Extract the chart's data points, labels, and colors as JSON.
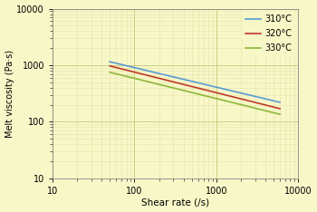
{
  "title": "",
  "xlabel": "Shear rate (/s)",
  "ylabel": "Melt viscosity (Pa·s)",
  "background_color": "#f7f7c8",
  "grid_color": "#c8c87a",
  "xmin": 10,
  "xmax": 10000,
  "ymin": 10,
  "ymax": 10000,
  "series": [
    {
      "label": "310°C",
      "color": "#5b9bd5",
      "x_start": 50,
      "x_end": 6000,
      "y_start": 1150,
      "y_end": 220
    },
    {
      "label": "320°C",
      "color": "#c0392b",
      "x_start": 50,
      "x_end": 6000,
      "y_start": 970,
      "y_end": 170
    },
    {
      "label": "330°C",
      "color": "#8db83a",
      "x_start": 50,
      "x_end": 6000,
      "y_start": 750,
      "y_end": 135
    }
  ],
  "legend_labels": [
    "310°C",
    "320°C",
    "330°C"
  ],
  "figsize": [
    3.5,
    2.34
  ],
  "dpi": 100
}
